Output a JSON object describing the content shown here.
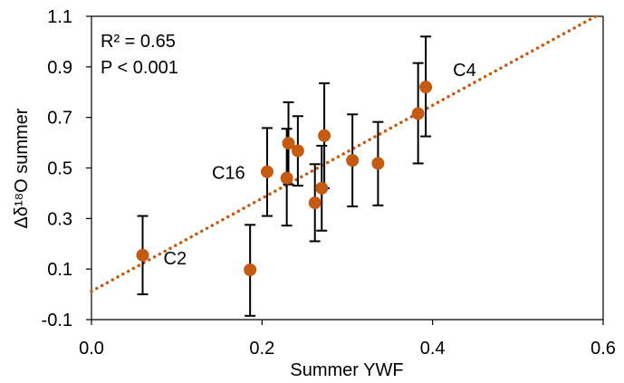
{
  "chart_data": {
    "type": "scatter",
    "xlabel": "Summer YWF",
    "ylabel": "Δδ¹⁸O summer",
    "xlim": [
      0.0,
      0.6
    ],
    "ylim": [
      -0.1,
      1.1
    ],
    "xticks": [
      "0.0",
      "0.2",
      "0.4",
      "0.6"
    ],
    "yticks": [
      "-0.1",
      "0.1",
      "0.3",
      "0.5",
      "0.7",
      "0.9",
      "1.1"
    ],
    "grid": false,
    "annotations": [
      "R² = 0.65",
      "P < 0.001"
    ],
    "series": [
      {
        "points": [
          {
            "x": 0.06,
            "y": 0.155,
            "err_low": 0.0,
            "err_high": 0.31,
            "label": "C2"
          },
          {
            "x": 0.186,
            "y": 0.097,
            "err_low": -0.085,
            "err_high": 0.275,
            "label": ""
          },
          {
            "x": 0.206,
            "y": 0.485,
            "err_low": 0.31,
            "err_high": 0.658,
            "label": "C16"
          },
          {
            "x": 0.229,
            "y": 0.46,
            "err_low": 0.272,
            "err_high": 0.655,
            "label": ""
          },
          {
            "x": 0.231,
            "y": 0.598,
            "err_low": 0.435,
            "err_high": 0.76,
            "label": ""
          },
          {
            "x": 0.242,
            "y": 0.568,
            "err_low": 0.43,
            "err_high": 0.705,
            "label": ""
          },
          {
            "x": 0.262,
            "y": 0.362,
            "err_low": 0.21,
            "err_high": 0.515,
            "label": ""
          },
          {
            "x": 0.27,
            "y": 0.42,
            "err_low": 0.252,
            "err_high": 0.588,
            "label": ""
          },
          {
            "x": 0.273,
            "y": 0.628,
            "err_low": 0.42,
            "err_high": 0.835,
            "label": ""
          },
          {
            "x": 0.306,
            "y": 0.53,
            "err_low": 0.348,
            "err_high": 0.712,
            "label": ""
          },
          {
            "x": 0.336,
            "y": 0.518,
            "err_low": 0.352,
            "err_high": 0.682,
            "label": ""
          },
          {
            "x": 0.383,
            "y": 0.715,
            "err_low": 0.518,
            "err_high": 0.915,
            "label": ""
          },
          {
            "x": 0.392,
            "y": 0.82,
            "err_low": 0.625,
            "err_high": 1.02,
            "label": "C4"
          }
        ]
      }
    ],
    "trendline": {
      "style": "dotted",
      "intercept": 0.012,
      "slope": 1.84
    },
    "colors": {
      "marker": "#c55a11",
      "errorbar": "#000000",
      "axis": "#000000"
    }
  }
}
